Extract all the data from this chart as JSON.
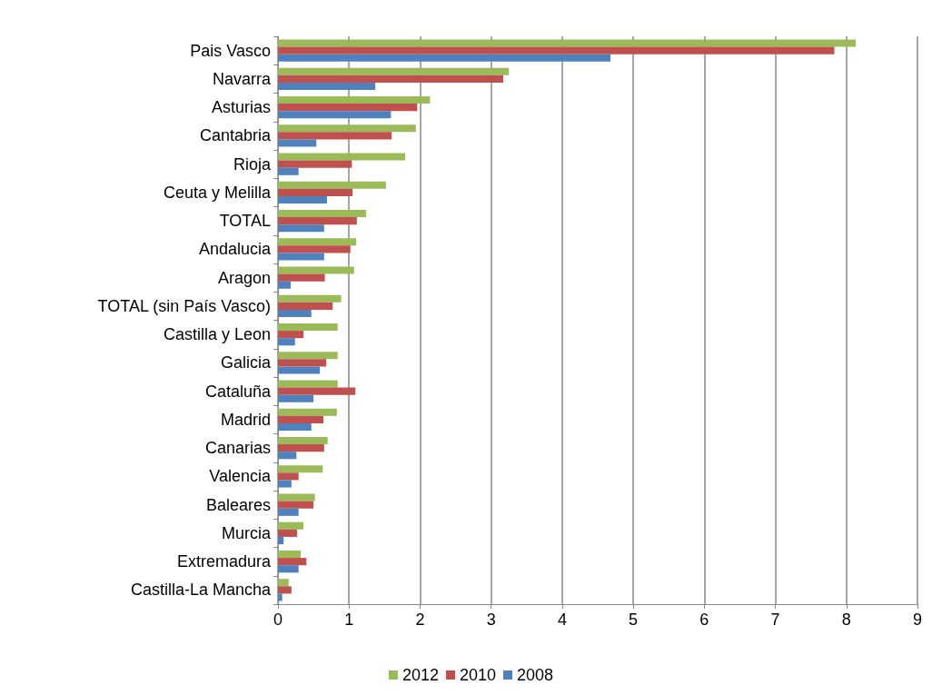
{
  "chart_data": {
    "type": "bar",
    "orientation": "horizontal",
    "categories": [
      "Pais Vasco",
      "Navarra",
      "Asturias",
      "Cantabria",
      "Rioja",
      "Ceuta y Melilla",
      "TOTAL",
      "Andalucia",
      "Aragon",
      "TOTAL (sin País Vasco)",
      "Castilla y Leon",
      "Galicia",
      "Cataluña",
      "Madrid",
      "Canarias",
      "Valencia",
      "Baleares",
      "Murcia",
      "Extremadura",
      "Castilla-La Mancha"
    ],
    "series": [
      {
        "name": "2012",
        "color": "#9bbb59",
        "values": [
          8.13,
          3.25,
          2.14,
          1.94,
          1.79,
          1.52,
          1.24,
          1.1,
          1.07,
          0.89,
          0.84,
          0.84,
          0.84,
          0.83,
          0.7,
          0.63,
          0.52,
          0.36,
          0.32,
          0.15
        ]
      },
      {
        "name": "2010",
        "color": "#c0504d",
        "values": [
          7.83,
          3.17,
          1.96,
          1.6,
          1.04,
          1.05,
          1.11,
          1.02,
          0.66,
          0.77,
          0.36,
          0.68,
          1.09,
          0.64,
          0.65,
          0.29,
          0.5,
          0.27,
          0.4,
          0.19
        ]
      },
      {
        "name": "2008",
        "color": "#4f81bd",
        "values": [
          4.68,
          1.37,
          1.59,
          0.54,
          0.29,
          0.69,
          0.65,
          0.65,
          0.18,
          0.47,
          0.24,
          0.59,
          0.5,
          0.47,
          0.26,
          0.19,
          0.29,
          0.08,
          0.29,
          0.06
        ]
      }
    ],
    "xlim": [
      0,
      9
    ],
    "xticks": [
      0,
      1,
      2,
      3,
      4,
      5,
      6,
      7,
      8,
      9
    ],
    "grid": "x",
    "legend": "bottom"
  }
}
